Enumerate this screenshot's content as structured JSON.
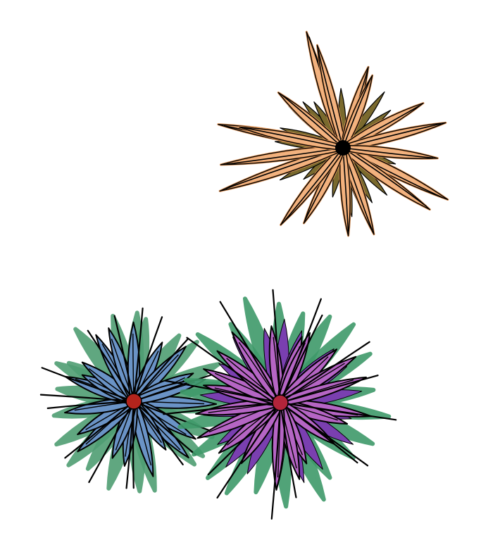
{
  "scene": {
    "background": "#ffffff",
    "flowers": [
      {
        "name": "peach-spiky-flower",
        "petal_color": "#f2b27f",
        "petal_edge": "#e79a5c",
        "under_color": "#7a6a2e",
        "center_color": "#000000",
        "style": "spiky"
      },
      {
        "name": "blue-green-flower",
        "petal_color": "#6a93c6",
        "under_color": "#4f9e73",
        "center_color": "#b3241c",
        "style": "leafy"
      },
      {
        "name": "purple-green-flower",
        "petal_color": "#b565c4",
        "under_color": "#7a3fb0",
        "outer_color": "#3f9a6a",
        "center_color": "#b3243a",
        "style": "leafy"
      }
    ],
    "outline_color": "#000000"
  }
}
